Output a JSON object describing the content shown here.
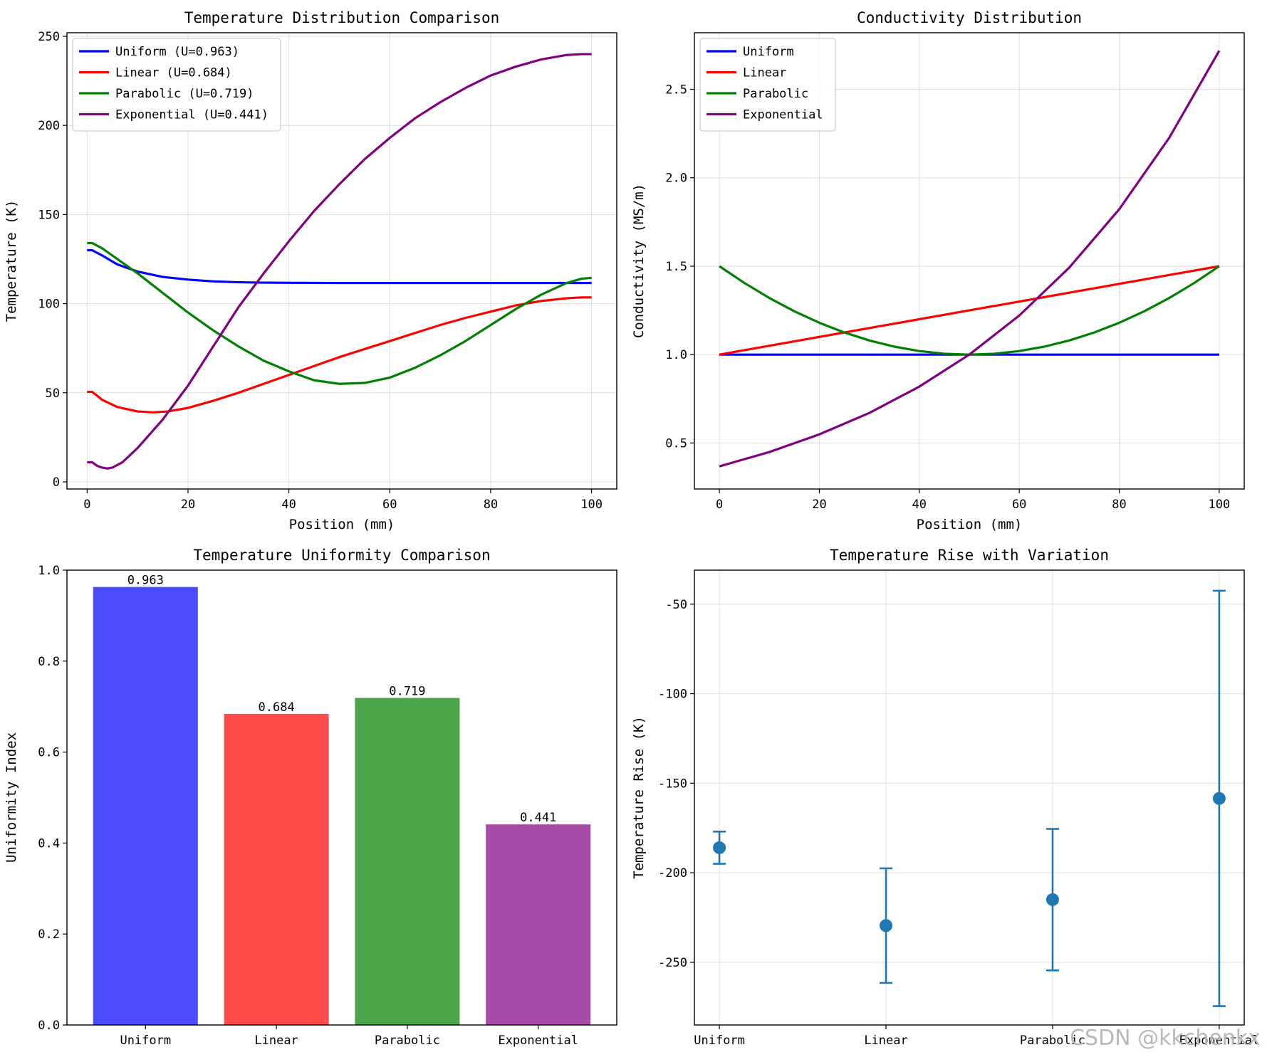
{
  "chart_data": [
    {
      "type": "line",
      "title": "Temperature Distribution Comparison",
      "xlabel": "Position (mm)",
      "ylabel": "Temperature (K)",
      "xlim": [
        -4,
        105
      ],
      "ylim": [
        -4,
        252
      ],
      "xticks": [
        0,
        20,
        40,
        60,
        80,
        100
      ],
      "yticks": [
        0,
        50,
        100,
        150,
        200,
        250
      ],
      "grid": true,
      "legend_position": "upper-left",
      "series": [
        {
          "name": "Uniform (U=0.963)",
          "color": "#0000ff",
          "x": [
            0,
            1,
            3,
            6,
            10,
            15,
            20,
            25,
            30,
            35,
            40,
            50,
            60,
            80,
            100
          ],
          "y": [
            130,
            130,
            127,
            122,
            118,
            115,
            113.5,
            112.5,
            112,
            111.8,
            111.7,
            111.6,
            111.6,
            111.6,
            111.6
          ]
        },
        {
          "name": "Linear (U=0.684)",
          "color": "#ff0000",
          "x": [
            0,
            1,
            3,
            6,
            10,
            13,
            16,
            20,
            25,
            30,
            35,
            40,
            45,
            50,
            55,
            60,
            65,
            70,
            75,
            80,
            85,
            90,
            95,
            98,
            100
          ],
          "y": [
            50.5,
            50.5,
            46,
            42,
            39.5,
            39,
            39.5,
            41.5,
            45.5,
            50,
            55,
            60,
            65,
            70,
            74.5,
            79,
            83.5,
            88,
            92,
            95.5,
            99,
            101.5,
            103,
            103.5,
            103.5
          ]
        },
        {
          "name": "Parabolic (U=0.719)",
          "color": "#008000",
          "x": [
            0,
            1,
            3,
            6,
            10,
            15,
            20,
            25,
            30,
            35,
            40,
            45,
            50,
            55,
            60,
            65,
            70,
            75,
            80,
            85,
            90,
            95,
            98,
            100
          ],
          "y": [
            134,
            134,
            131,
            125,
            117,
            106,
            95,
            85,
            76,
            68,
            62,
            57,
            55,
            55.5,
            58.5,
            64,
            71,
            79,
            88,
            97,
            105,
            111.5,
            114,
            114.5
          ]
        },
        {
          "name": "Exponential (U=0.441)",
          "color": "#800080",
          "x": [
            0,
            1,
            2,
            3,
            4,
            5,
            7,
            10,
            15,
            20,
            25,
            30,
            35,
            40,
            45,
            50,
            55,
            60,
            65,
            70,
            75,
            80,
            85,
            90,
            95,
            98,
            100
          ],
          "y": [
            11,
            11,
            9,
            8,
            7.5,
            8,
            11,
            19,
            35,
            54,
            76,
            98,
            117,
            135,
            152,
            167,
            181,
            193,
            204,
            213,
            221,
            228,
            233,
            237,
            239.5,
            240,
            240
          ]
        }
      ]
    },
    {
      "type": "line",
      "title": "Conductivity Distribution",
      "xlabel": "Position (mm)",
      "ylabel": "Conductivity (MS/m)",
      "xlim": [
        -5,
        105
      ],
      "ylim": [
        0.24,
        2.82
      ],
      "xticks": [
        0,
        20,
        40,
        60,
        80,
        100
      ],
      "yticks": [
        0.5,
        1.0,
        1.5,
        2.0,
        2.5
      ],
      "ytick_labels": [
        "0.5",
        "1.0",
        "1.5",
        "2.0",
        "2.5"
      ],
      "grid": true,
      "legend_position": "upper-left",
      "series": [
        {
          "name": "Uniform",
          "color": "#0000ff",
          "x": [
            0,
            100
          ],
          "y": [
            1.0,
            1.0
          ]
        },
        {
          "name": "Linear",
          "color": "#ff0000",
          "x": [
            0,
            100
          ],
          "y": [
            1.0,
            1.5
          ]
        },
        {
          "name": "Parabolic",
          "color": "#008000",
          "x": [
            0,
            5,
            10,
            15,
            20,
            25,
            30,
            35,
            40,
            45,
            50,
            55,
            60,
            65,
            70,
            75,
            80,
            85,
            90,
            95,
            100
          ],
          "y": [
            1.5,
            1.405,
            1.32,
            1.245,
            1.18,
            1.125,
            1.08,
            1.045,
            1.02,
            1.005,
            1.0,
            1.005,
            1.02,
            1.045,
            1.08,
            1.125,
            1.18,
            1.245,
            1.32,
            1.405,
            1.5
          ]
        },
        {
          "name": "Exponential",
          "color": "#800080",
          "x": [
            0,
            10,
            20,
            30,
            40,
            50,
            60,
            70,
            80,
            90,
            100
          ],
          "y": [
            0.368,
            0.449,
            0.549,
            0.67,
            0.819,
            1.0,
            1.221,
            1.492,
            1.822,
            2.226,
            2.718
          ]
        }
      ]
    },
    {
      "type": "bar",
      "title": "Temperature Uniformity Comparison",
      "xlabel": "",
      "ylabel": "Uniformity Index",
      "categories": [
        "Uniform",
        "Linear",
        "Parabolic",
        "Exponential"
      ],
      "values": [
        0.963,
        0.684,
        0.719,
        0.441
      ],
      "value_labels": [
        "0.963",
        "0.684",
        "0.719",
        "0.441"
      ],
      "colors": [
        "#4b4bff",
        "#ff4b4b",
        "#4ba64b",
        "#a64ba6"
      ],
      "ylim": [
        0.0,
        1.0
      ],
      "yticks": [
        0.0,
        0.2,
        0.4,
        0.6,
        0.8,
        1.0
      ],
      "ytick_labels": [
        "0.0",
        "0.2",
        "0.4",
        "0.6",
        "0.8",
        "1.0"
      ],
      "grid": false
    },
    {
      "type": "errorbar",
      "title": "Temperature Rise with Variation",
      "xlabel": "",
      "ylabel": "Temperature Rise (K)",
      "categories": [
        "Uniform",
        "Linear",
        "Parabolic",
        "Exponential"
      ],
      "values": [
        -186,
        -229.5,
        -215,
        -158.5
      ],
      "errors": [
        9,
        32,
        39.5,
        116
      ],
      "color": "#1f77b4",
      "ylim": [
        -285,
        -31
      ],
      "yticks": [
        -250,
        -200,
        -150,
        -100,
        -50
      ],
      "grid": true
    }
  ],
  "watermark": "CSDN @kkchenkx"
}
